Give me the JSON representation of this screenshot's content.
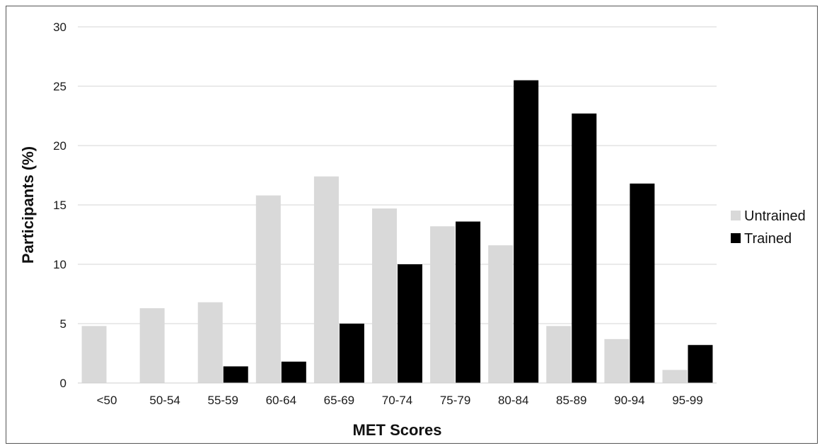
{
  "chart_data": {
    "type": "bar",
    "title": "",
    "xlabel": "MET Scores",
    "ylabel": "Participants (%)",
    "ylim": [
      0,
      30
    ],
    "yticks": [
      0,
      5,
      10,
      15,
      20,
      25,
      30
    ],
    "grid": true,
    "legend_position": "right",
    "categories": [
      "<50",
      "50-54",
      "55-59",
      "60-64",
      "65-69",
      "70-74",
      "75-79",
      "80-84",
      "85-89",
      "90-94",
      "95-99"
    ],
    "series": [
      {
        "name": "Untrained",
        "color": "#d9d9d9",
        "values": [
          4.8,
          6.3,
          6.8,
          15.8,
          17.4,
          14.7,
          13.2,
          11.6,
          4.8,
          3.7,
          1.1
        ]
      },
      {
        "name": "Trained",
        "color": "#000000",
        "values": [
          0,
          0,
          1.4,
          1.8,
          5.0,
          10.0,
          13.6,
          25.5,
          22.7,
          16.8,
          3.2
        ]
      }
    ]
  }
}
